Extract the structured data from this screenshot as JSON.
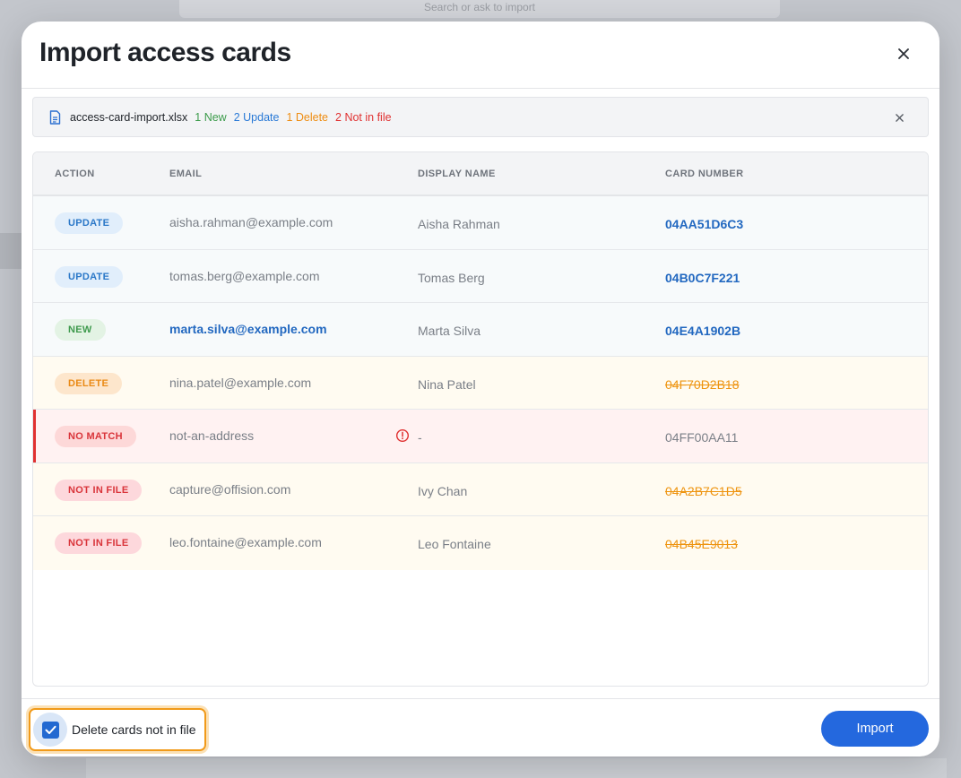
{
  "background": {
    "search_placeholder": "Search or ask to import"
  },
  "dialog": {
    "title": "Import access cards"
  },
  "file": {
    "name": "access-card-import.xlsx",
    "stats": {
      "new": "1 New",
      "update": "2 Update",
      "delete": "1 Delete",
      "not_in_file": "2 Not in file"
    }
  },
  "table": {
    "headers": {
      "action": "ACTION",
      "email": "EMAIL",
      "display_name": "DISPLAY NAME",
      "card_number": "CARD NUMBER"
    },
    "rows": [
      {
        "action": "UPDATE",
        "email": "aisha.rahman@example.com",
        "display_name": "Aisha Rahman",
        "card_number": "04AA51D6C3"
      },
      {
        "action": "UPDATE",
        "email": "tomas.berg@example.com",
        "display_name": "Tomas Berg",
        "card_number": "04B0C7F221"
      },
      {
        "action": "NEW",
        "email": "marta.silva@example.com",
        "display_name": "Marta Silva",
        "card_number": "04E4A1902B"
      },
      {
        "action": "DELETE",
        "email": "nina.patel@example.com",
        "display_name": "Nina Patel",
        "card_number": "04F70D2B18"
      },
      {
        "action": "NO MATCH",
        "email": "not-an-address",
        "display_name": "-",
        "card_number": "04FF00AA11"
      },
      {
        "action": "NOT IN FILE",
        "email": "capture@offision.com",
        "display_name": "Ivy Chan",
        "card_number": "04A2B7C1D5"
      },
      {
        "action": "NOT IN FILE",
        "email": "leo.fontaine@example.com",
        "display_name": "Leo Fontaine",
        "card_number": "04B45E9013"
      }
    ]
  },
  "footer": {
    "checkbox_label": "Delete cards not in file",
    "checkbox_checked": true,
    "import_label": "Import"
  },
  "colors": {
    "accent": "#2468de",
    "new": "#3b9b4a",
    "update": "#2979d6",
    "delete": "#ee8d12",
    "error": "#e03131"
  }
}
